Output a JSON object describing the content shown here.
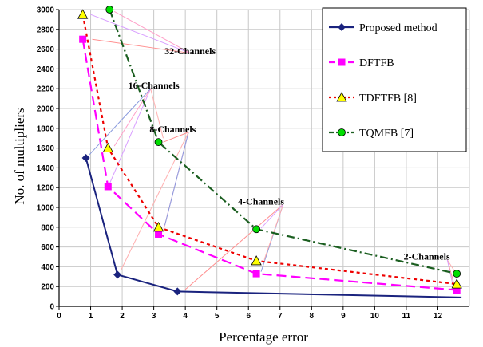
{
  "chart_data": {
    "type": "line",
    "xlabel": "Percentage error",
    "ylabel": "No. of multipliers",
    "xlim": [
      0,
      13
    ],
    "ylim": [
      0,
      3000
    ],
    "xticks": [
      0,
      1,
      2,
      3,
      4,
      5,
      6,
      7,
      8,
      9,
      10,
      11,
      12
    ],
    "yticks": [
      0,
      200,
      400,
      600,
      800,
      1000,
      1200,
      1400,
      1600,
      1800,
      2000,
      2200,
      2400,
      2600,
      2800,
      3000
    ],
    "grid": true,
    "legend_position": "top-right",
    "series": [
      {
        "name": "Proposed method",
        "color": "#1a237e",
        "marker": "diamond",
        "dash": "solid",
        "points": [
          [
            0.85,
            1500
          ],
          [
            1.85,
            320
          ],
          [
            3.75,
            150
          ]
        ],
        "tail": [
          [
            3.75,
            150
          ],
          [
            12.75,
            90
          ]
        ]
      },
      {
        "name": "DFTFB",
        "color": "#ff00ff",
        "marker": "square",
        "dash": "long-dash",
        "points": [
          [
            0.75,
            2700
          ],
          [
            1.55,
            1210
          ],
          [
            3.15,
            730
          ],
          [
            6.25,
            330
          ],
          [
            12.6,
            165
          ]
        ]
      },
      {
        "name": "TDFTFB [8]",
        "color": "#ee0000",
        "marker": "triangle",
        "dash": "dotted",
        "points": [
          [
            0.75,
            2950
          ],
          [
            1.55,
            1600
          ],
          [
            3.15,
            800
          ],
          [
            6.25,
            460
          ],
          [
            12.6,
            225
          ]
        ]
      },
      {
        "name": "TQMFB [7]",
        "color": "#1b5e20",
        "marker": "circle",
        "dash": "dash-dot",
        "points": [
          [
            1.6,
            3000
          ],
          [
            3.15,
            1660
          ],
          [
            6.25,
            780
          ],
          [
            12.6,
            330
          ]
        ]
      }
    ],
    "annotations": [
      {
        "text": "32-Channels",
        "x": 4.15,
        "y": 2550
      },
      {
        "text": "16-Channels",
        "x": 3.0,
        "y": 2200
      },
      {
        "text": "8-Channels",
        "x": 3.6,
        "y": 1760
      },
      {
        "text": "4-Channels",
        "x": 6.4,
        "y": 1030
      },
      {
        "text": "2-Channels",
        "x": 11.65,
        "y": 470
      }
    ]
  }
}
